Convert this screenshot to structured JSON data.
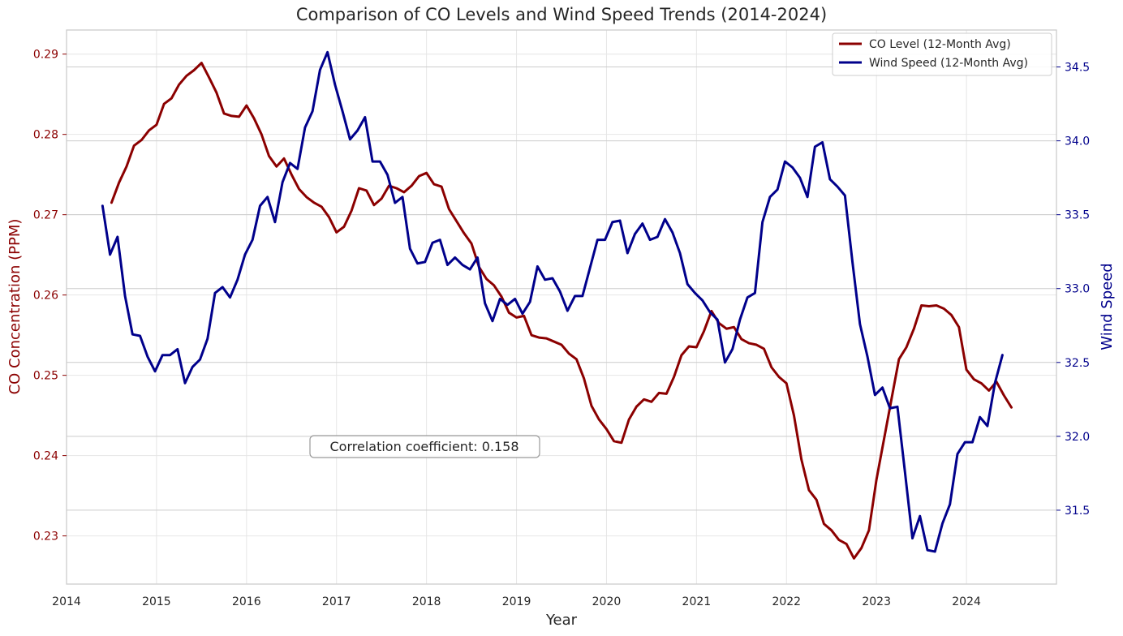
{
  "chart_data": {
    "type": "line",
    "title": "Comparison of CO Levels and Wind Speed Trends (2014-2024)",
    "xlabel": "Year",
    "ylabel_left": "CO Concentration (PPM)",
    "ylabel_right": "Wind Speed",
    "x_ticks": [
      "2014",
      "2015",
      "2016",
      "2017",
      "2018",
      "2019",
      "2020",
      "2021",
      "2022",
      "2023",
      "2024"
    ],
    "xlim": [
      2014.0,
      2025.0
    ],
    "ylim_left": [
      0.224,
      0.293
    ],
    "yticks_left": [
      "0.23",
      "0.24",
      "0.25",
      "0.26",
      "0.27",
      "0.28",
      "0.29"
    ],
    "ylim_right": [
      31.0,
      34.75
    ],
    "yticks_right": [
      "31.5",
      "32.0",
      "32.5",
      "33.0",
      "33.5",
      "34.0",
      "34.5"
    ],
    "grid": true,
    "legend_position": "top-right",
    "annotation": "Correlation coefficient: 0.158",
    "colors": {
      "co": "#8b0000",
      "wind": "#00008b",
      "grid": "#e6e6e6",
      "spine": "#cccccc",
      "text": "#262626"
    },
    "series": [
      {
        "name": "CO Level (12-Month Avg)",
        "axis": "left",
        "color": "#8b0000",
        "x_start": 2014.5,
        "x_step": 0.08333,
        "values": [
          0.2715,
          0.274,
          0.276,
          0.2786,
          0.2793,
          0.2805,
          0.2812,
          0.2838,
          0.2845,
          0.2862,
          0.2873,
          0.288,
          0.2889,
          0.2871,
          0.2852,
          0.2826,
          0.2823,
          0.2822,
          0.2836,
          0.282,
          0.28,
          0.2773,
          0.276,
          0.277,
          0.275,
          0.2732,
          0.2722,
          0.2715,
          0.271,
          0.2697,
          0.2678,
          0.2685,
          0.2705,
          0.2733,
          0.273,
          0.2712,
          0.272,
          0.2736,
          0.2733,
          0.2728,
          0.2736,
          0.2748,
          0.2752,
          0.2738,
          0.2735,
          0.2707,
          0.2692,
          0.2677,
          0.2664,
          0.2635,
          0.262,
          0.2612,
          0.2598,
          0.2578,
          0.2572,
          0.2574,
          0.255,
          0.2547,
          0.2546,
          0.2542,
          0.2538,
          0.2527,
          0.252,
          0.2496,
          0.2462,
          0.2445,
          0.2433,
          0.2418,
          0.2416,
          0.2445,
          0.2461,
          0.247,
          0.2467,
          0.2478,
          0.2477,
          0.2498,
          0.2525,
          0.2536,
          0.2535,
          0.2555,
          0.258,
          0.2565,
          0.2558,
          0.256,
          0.2545,
          0.254,
          0.2538,
          0.2533,
          0.251,
          0.2498,
          0.249,
          0.245,
          0.2395,
          0.2357,
          0.2345,
          0.2315,
          0.2307,
          0.2295,
          0.229,
          0.2272,
          0.2285,
          0.2307,
          0.237,
          0.242,
          0.247,
          0.252,
          0.2535,
          0.2558,
          0.2587,
          0.2586,
          0.2587,
          0.2583,
          0.2575,
          0.256,
          0.2507,
          0.2495,
          0.249,
          0.2481,
          0.2492,
          0.2475,
          0.246
        ]
      },
      {
        "name": "Wind Speed (12-Month Avg)",
        "axis": "right",
        "color": "#00008b",
        "x_start": 2014.4,
        "x_step": 0.08333,
        "values": [
          33.56,
          33.23,
          33.35,
          32.95,
          32.69,
          32.68,
          32.54,
          32.44,
          32.55,
          32.55,
          32.59,
          32.36,
          32.47,
          32.52,
          32.66,
          32.97,
          33.01,
          32.94,
          33.06,
          33.23,
          33.33,
          33.56,
          33.62,
          33.45,
          33.72,
          33.85,
          33.81,
          34.09,
          34.2,
          34.48,
          34.6,
          34.38,
          34.2,
          34.01,
          34.07,
          34.16,
          33.86,
          33.86,
          33.77,
          33.58,
          33.62,
          33.27,
          33.17,
          33.18,
          33.31,
          33.33,
          33.16,
          33.21,
          33.16,
          33.13,
          33.21,
          32.9,
          32.78,
          32.93,
          32.89,
          32.93,
          32.83,
          32.91,
          33.15,
          33.06,
          33.07,
          32.98,
          32.85,
          32.95,
          32.95,
          33.14,
          33.33,
          33.33,
          33.45,
          33.46,
          33.24,
          33.37,
          33.44,
          33.33,
          33.35,
          33.47,
          33.38,
          33.24,
          33.03,
          32.97,
          32.92,
          32.84,
          32.79,
          32.5,
          32.59,
          32.79,
          32.94,
          32.97,
          33.45,
          33.62,
          33.67,
          33.86,
          33.82,
          33.75,
          33.62,
          33.96,
          33.99,
          33.74,
          33.69,
          33.63,
          33.18,
          32.76,
          32.54,
          32.28,
          32.33,
          32.19,
          32.2,
          31.76,
          31.31,
          31.46,
          31.23,
          31.22,
          31.41,
          31.54,
          31.88,
          31.96,
          31.96,
          32.13,
          32.07,
          32.36,
          32.55
        ]
      }
    ]
  }
}
